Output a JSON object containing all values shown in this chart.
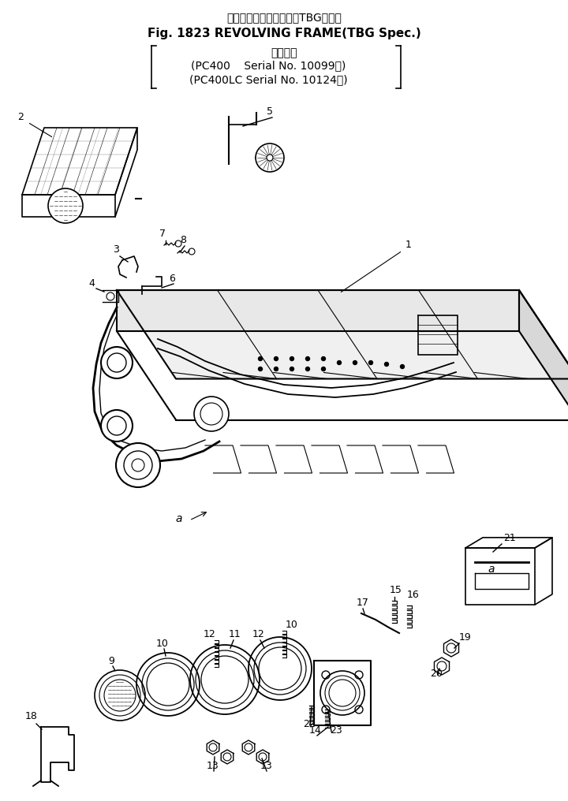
{
  "title_line1": "レボルビングフレーム（TBG仕様）",
  "title_line2": "Fig. 1823 REVOLVING FRAME(TBG Spec.)",
  "subtitle_line1": "適用号機",
  "subtitle_line2": "(PC400    Serial No. 10099～)",
  "subtitle_line3": "(PC400LC Serial No. 10124～)",
  "bg_color": "#ffffff",
  "line_color": "#000000",
  "font_size_title": 11,
  "font_size_sub": 10
}
